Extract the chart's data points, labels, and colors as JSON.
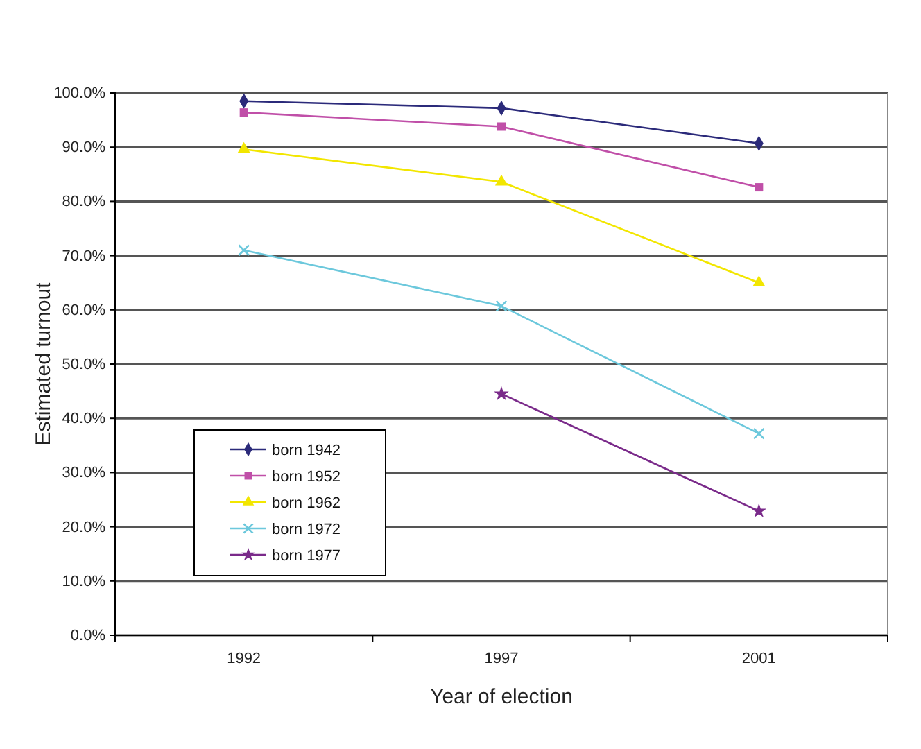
{
  "chart_data": {
    "type": "line",
    "xlabel": "Year of election",
    "ylabel": "Estimated turnout",
    "categories": [
      "1992",
      "1997",
      "2001"
    ],
    "series": [
      {
        "name": "born 1942",
        "color": "#2b2a7a",
        "marker": "diamond",
        "values": [
          98.5,
          97.2,
          90.7
        ]
      },
      {
        "name": "born 1952",
        "color": "#c04fa8",
        "marker": "square",
        "values": [
          96.4,
          93.8,
          82.6
        ]
      },
      {
        "name": "born 1962",
        "color": "#f2e600",
        "marker": "triangle",
        "values": [
          89.6,
          83.6,
          65.0
        ]
      },
      {
        "name": "born 1972",
        "color": "#6cc8dc",
        "marker": "cross",
        "values": [
          71.0,
          60.7,
          37.2
        ]
      },
      {
        "name": "born 1977",
        "color": "#7a2a8a",
        "marker": "star",
        "values": [
          null,
          44.5,
          22.9
        ]
      }
    ],
    "ylim": [
      0,
      100
    ],
    "yticks": [
      {
        "value": 0,
        "label": "0.0%"
      },
      {
        "value": 10,
        "label": "10.0%"
      },
      {
        "value": 20,
        "label": "20.0%"
      },
      {
        "value": 30,
        "label": "30.0%"
      },
      {
        "value": 40,
        "label": "40.0%"
      },
      {
        "value": 50,
        "label": "50.0%"
      },
      {
        "value": 60,
        "label": "60.0%"
      },
      {
        "value": 70,
        "label": "70.0%"
      },
      {
        "value": 80,
        "label": "80.0%"
      },
      {
        "value": 90,
        "label": "90.0%"
      },
      {
        "value": 100,
        "label": "100.0%"
      }
    ],
    "grid": "y",
    "legend": "bottom left",
    "line_style": "solid"
  }
}
